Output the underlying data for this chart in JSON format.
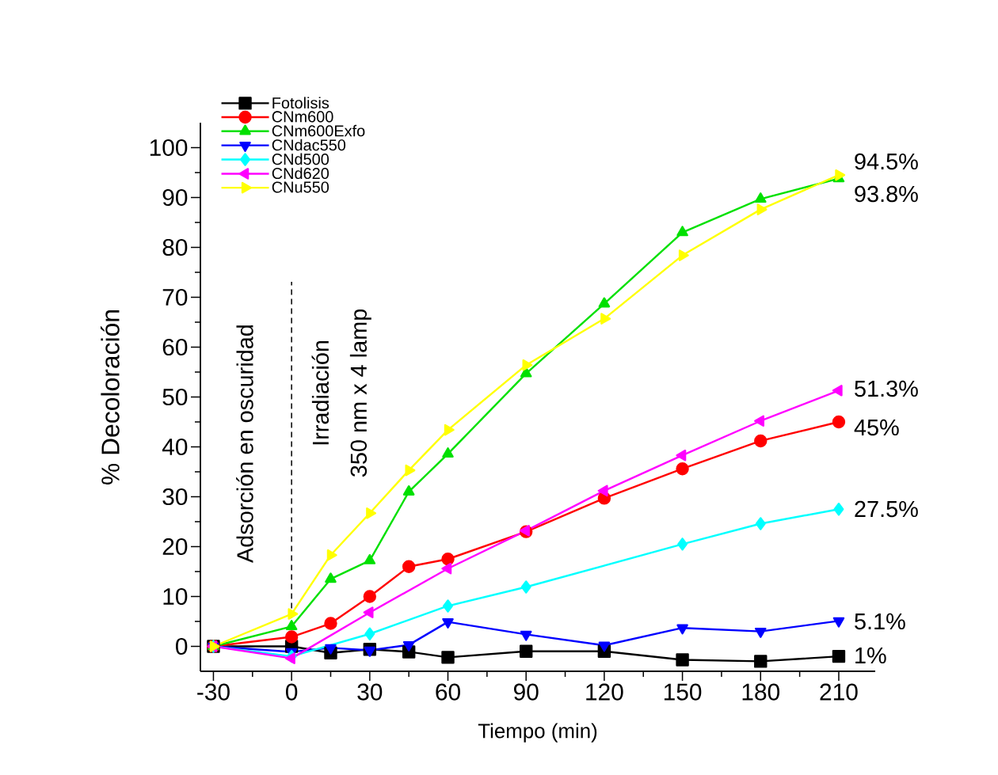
{
  "chart_data": {
    "type": "line",
    "xlabel": "Tiempo (min)",
    "ylabel": "% Decoloración",
    "xlim": [
      -35,
      224
    ],
    "ylim": [
      -5,
      105
    ],
    "xticks": [
      -30,
      0,
      30,
      60,
      90,
      120,
      150,
      180,
      210
    ],
    "yticks": [
      0,
      10,
      20,
      30,
      40,
      50,
      60,
      70,
      80,
      90,
      100
    ],
    "legend": "top left",
    "grid": false,
    "line_style": "solid",
    "ref_lines": [
      {
        "axis": "x",
        "value": 0,
        "color": "#000000",
        "line_style": "dashed"
      }
    ],
    "series": [
      {
        "name": "Fotolisis",
        "color": "#000000",
        "marker": "square",
        "x": [
          -30,
          0,
          15,
          30,
          45,
          60,
          90,
          120,
          150,
          180,
          210
        ],
        "values": [
          0,
          0,
          -1.3,
          -0.6,
          -1.1,
          -2.2,
          -1,
          -1,
          -2.7,
          -3,
          -2
        ]
      },
      {
        "name": "CNm600",
        "color": "#ff0000",
        "marker": "circle",
        "x": [
          -30,
          0,
          15,
          30,
          45,
          60,
          90,
          120,
          150,
          180,
          210
        ],
        "values": [
          0,
          1.9,
          4.6,
          10,
          16,
          17.5,
          23,
          29.7,
          35.6,
          41.2,
          45
        ]
      },
      {
        "name": "CNm600Exfo",
        "color": "#00e000",
        "marker": "triangle",
        "x": [
          -30,
          0,
          15,
          30,
          45,
          60,
          90,
          120,
          150,
          180,
          210
        ],
        "values": [
          0,
          4,
          13.5,
          17.2,
          31,
          38.6,
          54.7,
          68.7,
          83,
          89.7,
          93.8
        ]
      },
      {
        "name": "CNdac550",
        "color": "#0000ff",
        "marker": "triangle-down",
        "x": [
          -30,
          0,
          15,
          30,
          45,
          60,
          90,
          120,
          150,
          180,
          210
        ],
        "values": [
          0,
          -1.1,
          -0.3,
          -0.8,
          0.3,
          4.9,
          2.4,
          0.2,
          3.7,
          3,
          5.1
        ]
      },
      {
        "name": "CNd500",
        "color": "#00ffff",
        "marker": "diamond",
        "x": [
          -30,
          0,
          30,
          60,
          90,
          150,
          180,
          210
        ],
        "values": [
          0,
          -2,
          2.5,
          8.1,
          11.9,
          20.5,
          24.6,
          27.5
        ]
      },
      {
        "name": "CNd620",
        "color": "#ff00ff",
        "marker": "triangle-left",
        "x": [
          -30,
          0,
          30,
          60,
          90,
          120,
          150,
          180,
          210
        ],
        "values": [
          0,
          -2.4,
          6.8,
          15.6,
          23.2,
          31.2,
          38.3,
          45.2,
          51.3
        ]
      },
      {
        "name": "CNu550",
        "color": "#ffff00",
        "marker": "triangle-right",
        "x": [
          -30,
          0,
          15,
          30,
          45,
          60,
          90,
          120,
          150,
          180,
          210
        ],
        "values": [
          0,
          6.5,
          18.3,
          26.7,
          35.3,
          43.4,
          56.4,
          65.7,
          78.4,
          87.6,
          94.5
        ]
      }
    ],
    "annotations": [
      "Adsorción en oscuridad",
      "Irradiación",
      "350 nm x 4 lamp",
      "94.5%",
      "93.8%",
      "51.3%",
      "45%",
      "27.5%",
      "5.1%",
      "1%"
    ]
  }
}
